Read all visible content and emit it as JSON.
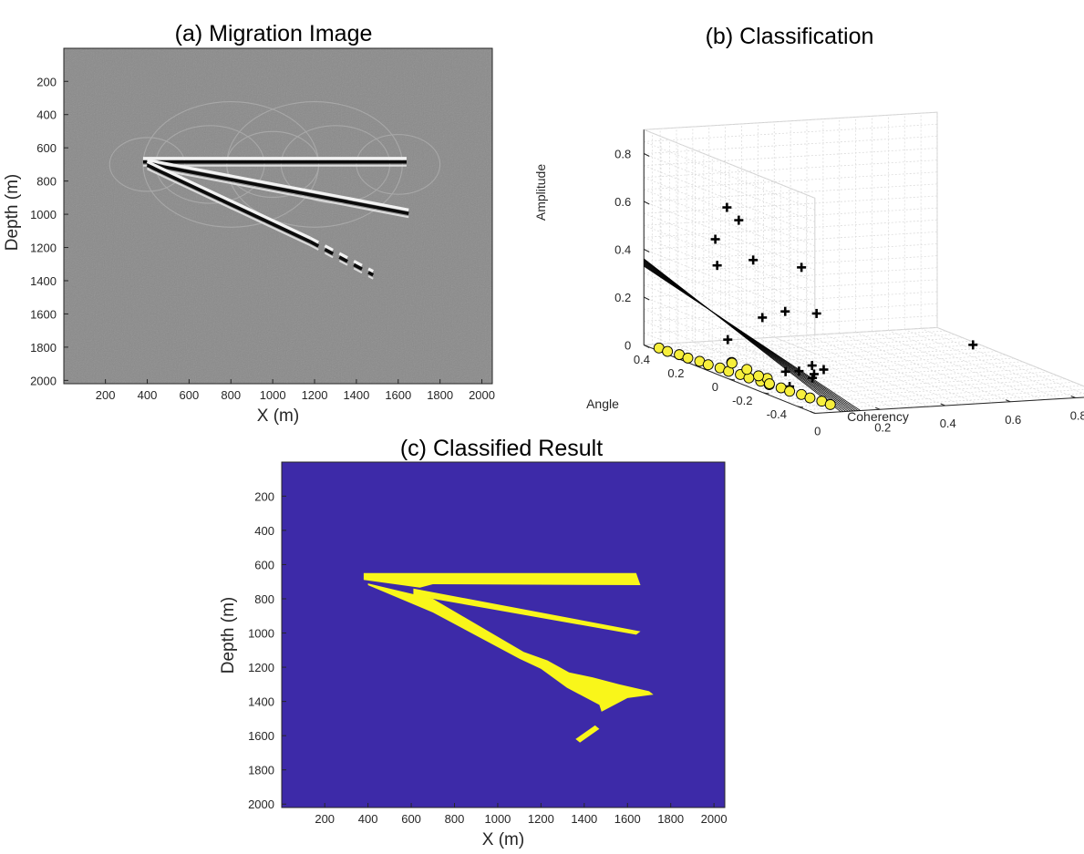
{
  "figure": {
    "panels": [
      "a",
      "b",
      "c"
    ]
  },
  "chart_data": [
    {
      "id": "a",
      "type": "heatmap",
      "title": "(a) Migration Image",
      "xlabel": "X (m)",
      "ylabel": "Depth (m)",
      "xlim": [
        1,
        2050
      ],
      "ylim": [
        2020,
        1
      ],
      "xticks": [
        200,
        400,
        600,
        800,
        1000,
        1200,
        1400,
        1600,
        1800,
        2000
      ],
      "yticks": [
        200,
        400,
        600,
        800,
        1000,
        1200,
        1400,
        1600,
        1800,
        2000
      ],
      "colormap": "gray",
      "background_color": "#8a8a8a",
      "reflectors": [
        {
          "x": [
            380,
            1640
          ],
          "depth": [
            680,
            680
          ]
        },
        {
          "x": [
            400,
            1650
          ],
          "depth": [
            690,
            990
          ]
        },
        {
          "x": [
            400,
            1180
          ],
          "depth": [
            700,
            1160
          ]
        },
        {
          "x": [
            1180,
            1480
          ],
          "depth": [
            1160,
            1360
          ]
        }
      ]
    },
    {
      "id": "b",
      "type": "scatter",
      "title": "(b) Classification",
      "xlabel": "Coherency",
      "ylabel": "Angle",
      "zlabel": "Amplitude",
      "xlim": [
        0,
        0.9
      ],
      "ylim": [
        -0.5,
        0.5
      ],
      "zlim": [
        0,
        0.9
      ],
      "xticks": [
        0,
        0.2,
        0.4,
        0.6,
        0.8
      ],
      "yticks": [
        -0.4,
        -0.2,
        0,
        0.2,
        0.4
      ],
      "zticks": [
        0,
        0.2,
        0.4,
        0.6,
        0.8
      ],
      "grid": true,
      "series": [
        {
          "marker": "plus",
          "color": "#000000",
          "points": [
            [
              0.15,
              0.3,
              0.62
            ],
            [
              0.16,
              0.25,
              0.58
            ],
            [
              0.13,
              0.33,
              0.48
            ],
            [
              0.12,
              0.3,
              0.38
            ],
            [
              0.22,
              0.28,
              0.4
            ],
            [
              0.3,
              0.15,
              0.4
            ],
            [
              0.1,
              0.2,
              0.1
            ],
            [
              0.18,
              0.15,
              0.2
            ],
            [
              0.25,
              0.15,
              0.22
            ],
            [
              0.32,
              0.1,
              0.22
            ],
            [
              0.28,
              0.05,
              0.02
            ],
            [
              0.3,
              0.02,
              0.01
            ],
            [
              0.24,
              0.05,
              0.0
            ],
            [
              0.26,
              0.0,
              0.0
            ],
            [
              0.12,
              -0.1,
              0.05
            ],
            [
              0.15,
              -0.2,
              0.05
            ],
            [
              0.08,
              -0.2,
              0.02
            ],
            [
              0.8,
              0.1,
              0.05
            ]
          ]
        },
        {
          "marker": "circle",
          "color": "#f7ef3c",
          "points": [
            [
              0.02,
              0.45,
              0.0
            ],
            [
              0.02,
              0.4,
              0.0
            ],
            [
              0.03,
              0.35,
              0.0
            ],
            [
              0.03,
              0.3,
              0.0
            ],
            [
              0.04,
              0.25,
              0.0
            ],
            [
              0.04,
              0.2,
              0.0
            ],
            [
              0.05,
              0.15,
              0.0
            ],
            [
              0.05,
              0.1,
              0.0
            ],
            [
              0.06,
              0.05,
              0.0
            ],
            [
              0.06,
              0.0,
              0.0
            ],
            [
              0.07,
              -0.05,
              0.0
            ],
            [
              0.07,
              -0.1,
              0.0
            ],
            [
              0.08,
              -0.15,
              0.0
            ],
            [
              0.08,
              -0.2,
              0.0
            ],
            [
              0.09,
              -0.25,
              0.0
            ],
            [
              0.09,
              -0.3,
              0.0
            ],
            [
              0.1,
              -0.35,
              0.0
            ],
            [
              0.1,
              -0.4,
              0.0
            ],
            [
              0.08,
              0.05,
              0.02
            ],
            [
              0.07,
              0.12,
              0.03
            ],
            [
              0.09,
              -0.05,
              0.01
            ],
            [
              0.06,
              -0.12,
              0.01
            ],
            [
              0.1,
              0.02,
              0.0
            ],
            [
              0.05,
              0.08,
              0.04
            ]
          ]
        }
      ],
      "decision_plane": {
        "description": "separating surface",
        "color": "#000000"
      }
    },
    {
      "id": "c",
      "type": "heatmap",
      "title": "(c) Classified Result",
      "xlabel": "X (m)",
      "ylabel": "Depth (m)",
      "xlim": [
        1,
        2050
      ],
      "ylim": [
        2020,
        1
      ],
      "xticks": [
        200,
        400,
        600,
        800,
        1000,
        1200,
        1400,
        1600,
        1800,
        2000
      ],
      "yticks": [
        200,
        400,
        600,
        800,
        1000,
        1200,
        1400,
        1600,
        1800,
        2000
      ],
      "background_color": "#3d2aa8",
      "class_color": "#f9f61a",
      "regions": [
        [
          [
            380,
            650
          ],
          [
            1640,
            650
          ],
          [
            1660,
            720
          ],
          [
            700,
            715
          ],
          [
            640,
            735
          ],
          [
            380,
            690
          ]
        ],
        [
          [
            610,
            740
          ],
          [
            1660,
            990
          ],
          [
            1640,
            1010
          ],
          [
            610,
            780
          ]
        ],
        [
          [
            400,
            710
          ],
          [
            700,
            800
          ],
          [
            1120,
            1110
          ],
          [
            1230,
            1160
          ],
          [
            1330,
            1230
          ],
          [
            1440,
            1260
          ],
          [
            1560,
            1300
          ],
          [
            1700,
            1340
          ],
          [
            1720,
            1360
          ],
          [
            1600,
            1380
          ],
          [
            1480,
            1460
          ],
          [
            1470,
            1420
          ],
          [
            1320,
            1320
          ],
          [
            1200,
            1210
          ],
          [
            1100,
            1150
          ],
          [
            700,
            880
          ],
          [
            400,
            720
          ]
        ],
        [
          [
            1360,
            1620
          ],
          [
            1450,
            1540
          ],
          [
            1470,
            1560
          ],
          [
            1380,
            1640
          ]
        ]
      ]
    }
  ]
}
